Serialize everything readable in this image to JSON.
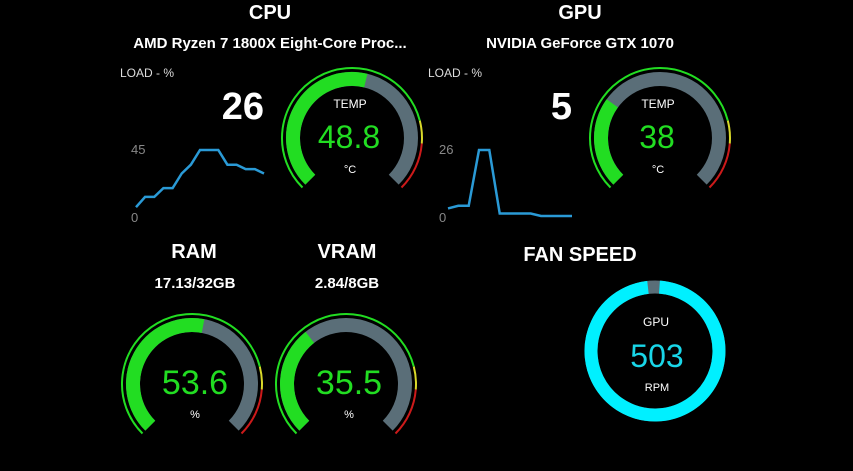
{
  "cpu": {
    "header": "CPU",
    "name": "AMD Ryzen 7 1800X Eight-Core Proc...",
    "load_label": "LOAD - %",
    "load_value": "26",
    "graph": {
      "max_label": "45",
      "min_label": "0",
      "values": [
        6,
        13,
        13,
        19,
        19,
        29,
        35,
        45,
        45,
        45,
        35,
        35,
        32,
        32,
        29
      ]
    },
    "temp": {
      "label": "TEMP",
      "value": "48.8",
      "unit": "°C",
      "fraction": 0.55
    }
  },
  "gpu": {
    "header": "GPU",
    "name": "NVIDIA GeForce GTX 1070",
    "load_label": "LOAD - %",
    "load_value": "5",
    "graph": {
      "max_label": "26",
      "min_label": "0",
      "values": [
        3,
        4,
        4,
        26,
        26,
        1,
        1,
        1,
        1,
        0,
        0,
        0,
        0
      ]
    },
    "temp": {
      "label": "TEMP",
      "value": "38",
      "unit": "°C",
      "fraction": 0.3
    }
  },
  "ram": {
    "header": "RAM",
    "usage": "17.13/32GB",
    "value": "53.6",
    "unit": "%",
    "fraction": 0.54
  },
  "vram": {
    "header": "VRAM",
    "usage": "2.84/8GB",
    "value": "35.5",
    "unit": "%",
    "fraction": 0.36
  },
  "fan": {
    "header": "FAN SPEED",
    "label": "GPU",
    "value": "503",
    "unit": "RPM",
    "fraction": 0.985
  },
  "colors": {
    "green": "#22dd22",
    "gray": "#5a6e78",
    "yellow": "#d9d92a",
    "red": "#cc1a1a",
    "line": "#2a9ad6",
    "cyan": "#00f0ff"
  }
}
